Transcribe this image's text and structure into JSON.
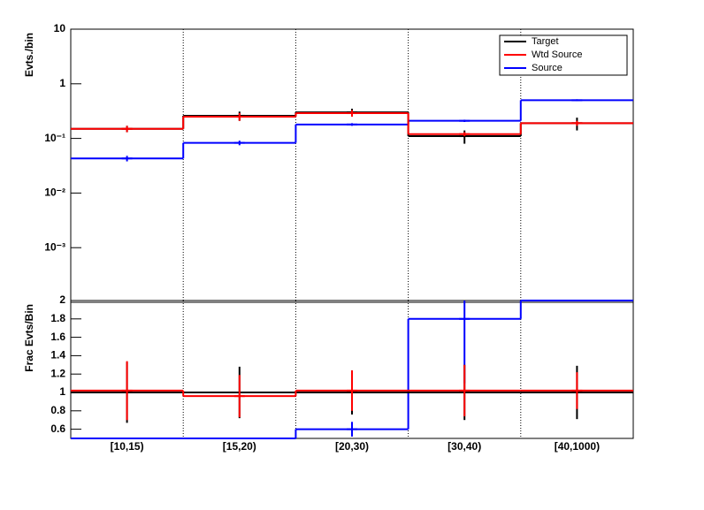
{
  "chart_data": [
    {
      "type": "step",
      "y_label": "Evts./bin",
      "log_y": true,
      "ylim": [
        0.0001,
        10
      ],
      "yticks": [
        {
          "value": 0.001,
          "label": "10⁻³"
        },
        {
          "value": 0.01,
          "label": "10⁻²"
        },
        {
          "value": 0.1,
          "label": "10⁻¹"
        },
        1,
        10
      ],
      "legend": "top-right",
      "grid_x": true,
      "series": [
        {
          "name": "Target",
          "color": "#000000",
          "values": [
            0.15,
            0.26,
            0.3,
            0.11,
            0.19
          ],
          "errors": [
            0.02,
            0.05,
            0.05,
            0.03,
            0.05
          ]
        },
        {
          "name": "Wtd Source",
          "color": "#ff0000",
          "values": [
            0.15,
            0.25,
            0.29,
            0.12,
            0.19
          ],
          "errors": [
            0.02,
            0.04,
            0.04,
            0.01,
            0.02
          ]
        },
        {
          "name": "Source",
          "color": "#0000ff",
          "values": [
            0.043,
            0.083,
            0.18,
            0.21,
            0.5
          ],
          "errors": [
            0.005,
            0.008,
            0.01,
            0.01,
            0.02
          ]
        }
      ]
    },
    {
      "type": "step",
      "y_label": "Frac Evts/Bin",
      "log_y": false,
      "ylim": [
        0.5,
        2
      ],
      "yticks": [
        0.6,
        0.8,
        1,
        1.2,
        1.4,
        1.6,
        1.8,
        2
      ],
      "grid_x": true,
      "categories": [
        "[10,15)",
        "[15,20)",
        "[20,30)",
        "[30,40)",
        "[40,1000)"
      ],
      "series": [
        {
          "name": "Target",
          "color": "#000000",
          "values": [
            1,
            1,
            1,
            1,
            1
          ],
          "errors": [
            0.33,
            0.28,
            0.24,
            0.3,
            0.29
          ]
        },
        {
          "name": "Wtd Source",
          "color": "#ff0000",
          "values": [
            1.02,
            0.96,
            1.02,
            1.02,
            1.02
          ],
          "errors": [
            0.32,
            0.23,
            0.22,
            0.28,
            0.2
          ]
        },
        {
          "name": "Source",
          "color": "#0000ff",
          "values": [
            0.5,
            0.5,
            0.6,
            1.8,
            2
          ],
          "errors": [
            0,
            0,
            0.08,
            0.7,
            0
          ]
        }
      ]
    }
  ]
}
